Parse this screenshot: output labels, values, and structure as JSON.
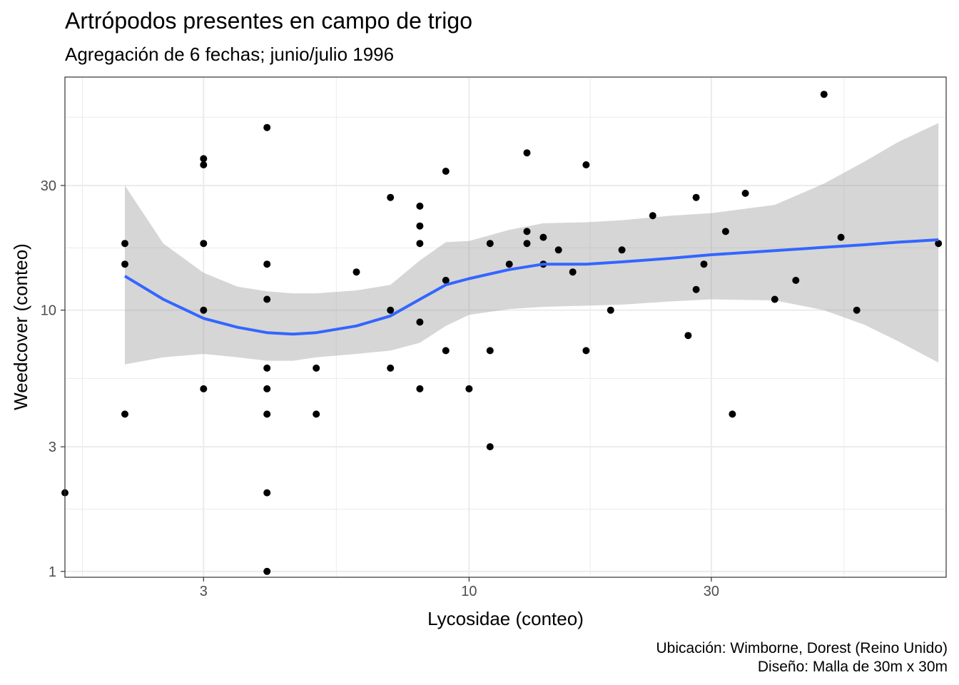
{
  "chart_data": {
    "type": "scatter",
    "title": "Artrópodos presentes en campo de trigo",
    "subtitle": "Agregación de 6 fechas; junio/julio 1996",
    "xlabel": "Lycosidae (conteo)",
    "ylabel": "Weedcover (conteo)",
    "caption": [
      "Ubicación: Wimborne, Dorest (Reino Unido)",
      "Diseño: Malla de 30m x 30m"
    ],
    "x_scale": "log10",
    "y_scale": "log10",
    "xlim": [
      1.6,
      87
    ],
    "ylim": [
      0.95,
      78
    ],
    "x_ticks": [
      3,
      10,
      30
    ],
    "x_tick_labels": [
      "3",
      "10",
      "30"
    ],
    "y_ticks": [
      1,
      3,
      10,
      30
    ],
    "y_tick_labels": [
      "1",
      "3",
      "10",
      "30"
    ],
    "x_minor": [
      1.732,
      5.477,
      17.32,
      54.77
    ],
    "y_minor": [
      1.732,
      5.477,
      17.32,
      54.77
    ],
    "grid": true,
    "colors": {
      "points": "#000000",
      "smooth_line": "#3366ff",
      "ribbon": "#999999",
      "grid": "#ebebeb",
      "panel_border": "#333333"
    },
    "points": [
      {
        "x": 1.6,
        "y": 2
      },
      {
        "x": 2.1,
        "y": 18
      },
      {
        "x": 2.1,
        "y": 15
      },
      {
        "x": 2.1,
        "y": 4
      },
      {
        "x": 3,
        "y": 38
      },
      {
        "x": 3,
        "y": 36
      },
      {
        "x": 3,
        "y": 18
      },
      {
        "x": 3,
        "y": 10
      },
      {
        "x": 3,
        "y": 5
      },
      {
        "x": 4,
        "y": 50
      },
      {
        "x": 4,
        "y": 15
      },
      {
        "x": 4,
        "y": 11
      },
      {
        "x": 4,
        "y": 6
      },
      {
        "x": 4,
        "y": 5
      },
      {
        "x": 4,
        "y": 4
      },
      {
        "x": 4,
        "y": 2
      },
      {
        "x": 4,
        "y": 1
      },
      {
        "x": 5,
        "y": 6
      },
      {
        "x": 5,
        "y": 4
      },
      {
        "x": 6,
        "y": 14
      },
      {
        "x": 7,
        "y": 27
      },
      {
        "x": 7,
        "y": 10
      },
      {
        "x": 7,
        "y": 6
      },
      {
        "x": 8,
        "y": 25
      },
      {
        "x": 8,
        "y": 21
      },
      {
        "x": 8,
        "y": 18
      },
      {
        "x": 8,
        "y": 9
      },
      {
        "x": 8,
        "y": 5
      },
      {
        "x": 9,
        "y": 34
      },
      {
        "x": 9,
        "y": 13
      },
      {
        "x": 9,
        "y": 7
      },
      {
        "x": 10,
        "y": 5
      },
      {
        "x": 11,
        "y": 18
      },
      {
        "x": 11,
        "y": 7
      },
      {
        "x": 11,
        "y": 3
      },
      {
        "x": 12,
        "y": 15
      },
      {
        "x": 13,
        "y": 40
      },
      {
        "x": 13,
        "y": 20
      },
      {
        "x": 13,
        "y": 18
      },
      {
        "x": 14,
        "y": 19
      },
      {
        "x": 14,
        "y": 15
      },
      {
        "x": 15,
        "y": 17
      },
      {
        "x": 16,
        "y": 14
      },
      {
        "x": 17,
        "y": 36
      },
      {
        "x": 17,
        "y": 7
      },
      {
        "x": 19,
        "y": 10
      },
      {
        "x": 20,
        "y": 17
      },
      {
        "x": 23,
        "y": 23
      },
      {
        "x": 27,
        "y": 8
      },
      {
        "x": 28,
        "y": 27
      },
      {
        "x": 28,
        "y": 12
      },
      {
        "x": 29,
        "y": 15
      },
      {
        "x": 32,
        "y": 20
      },
      {
        "x": 33,
        "y": 4
      },
      {
        "x": 35,
        "y": 28
      },
      {
        "x": 40,
        "y": 11
      },
      {
        "x": 44,
        "y": 13
      },
      {
        "x": 50,
        "y": 67
      },
      {
        "x": 54,
        "y": 19
      },
      {
        "x": 58,
        "y": 10
      },
      {
        "x": 84,
        "y": 18
      }
    ],
    "smooth": {
      "x": [
        2.1,
        2.5,
        3,
        3.5,
        4,
        4.5,
        5,
        6,
        7,
        8,
        9,
        10,
        12,
        14,
        17,
        20,
        25,
        30,
        40,
        50,
        60,
        70,
        84
      ],
      "y": [
        13.5,
        11.0,
        9.3,
        8.6,
        8.2,
        8.1,
        8.2,
        8.7,
        9.5,
        11.0,
        12.5,
        13.2,
        14.3,
        15.0,
        15.0,
        15.3,
        15.8,
        16.3,
        16.9,
        17.4,
        17.8,
        18.2,
        18.6
      ],
      "ymin": [
        6.2,
        6.6,
        6.8,
        6.6,
        6.4,
        6.4,
        6.6,
        6.8,
        7.0,
        7.5,
        8.7,
        9.6,
        10.1,
        10.3,
        10.4,
        10.5,
        10.8,
        11.0,
        10.9,
        10.0,
        8.8,
        7.6,
        6.3
      ],
      "ymax": [
        30,
        18.0,
        13.9,
        12.3,
        11.8,
        11.6,
        11.6,
        11.9,
        12.5,
        15.5,
        18.2,
        18.4,
        20.3,
        21.5,
        21.7,
        22.1,
        23.0,
        23.5,
        25.3,
        30.5,
        37.0,
        44.0,
        52.0
      ]
    }
  }
}
